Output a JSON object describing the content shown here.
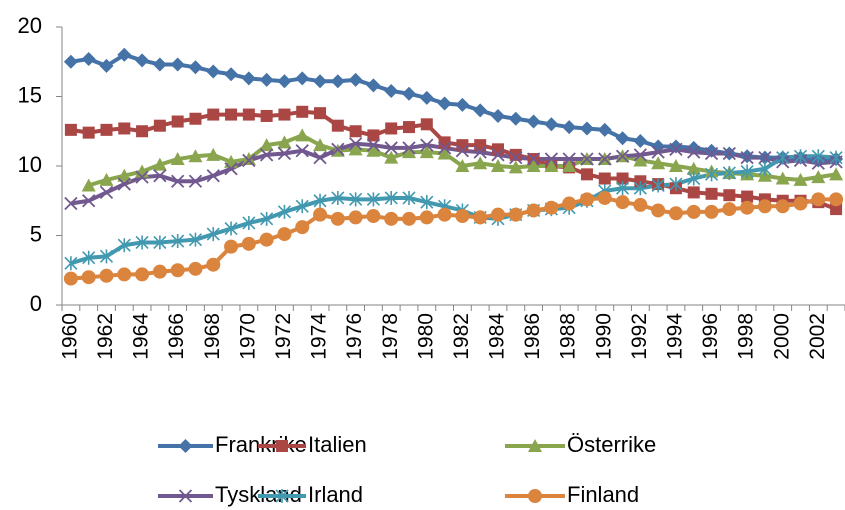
{
  "chart_data": {
    "type": "line",
    "categories": [
      "1960",
      null,
      "1962",
      null,
      "1964",
      null,
      "1966",
      null,
      "1968",
      null,
      "1970",
      null,
      "1972",
      null,
      "1974",
      null,
      "1976",
      null,
      "1978",
      null,
      "1980",
      null,
      "1982",
      null,
      "1984",
      null,
      "1986",
      null,
      "1988",
      null,
      "1990",
      null,
      "1992",
      null,
      "1994",
      null,
      "1996",
      null,
      "1998",
      null,
      "2000",
      null,
      "2002",
      null
    ],
    "series": [
      {
        "name": "Frankrike",
        "color": "#4572a7",
        "marker": "diamond",
        "values": [
          17.5,
          17.7,
          17.2,
          18.0,
          17.6,
          17.3,
          17.3,
          17.1,
          16.8,
          16.6,
          16.3,
          16.2,
          16.1,
          16.3,
          16.1,
          16.1,
          16.2,
          15.8,
          15.4,
          15.2,
          14.9,
          14.5,
          14.4,
          14.0,
          13.6,
          13.4,
          13.2,
          13.0,
          12.8,
          12.7,
          12.6,
          12.0,
          11.8,
          11.4,
          11.4,
          11.3,
          11.1,
          10.9,
          10.7,
          10.6,
          10.6,
          10.6,
          10.4,
          10.5
        ]
      },
      {
        "name": "Italien",
        "color": "#aa4643",
        "marker": "square",
        "values": [
          12.6,
          12.4,
          12.6,
          12.7,
          12.5,
          12.9,
          13.2,
          13.4,
          13.7,
          13.7,
          13.7,
          13.6,
          13.7,
          13.9,
          13.8,
          12.9,
          12.5,
          12.2,
          12.7,
          12.8,
          13.0,
          11.7,
          11.5,
          11.5,
          11.2,
          10.8,
          10.5,
          10.0,
          9.9,
          9.4,
          9.1,
          9.1,
          8.9,
          8.7,
          8.4,
          8.1,
          8.0,
          7.9,
          7.8,
          7.6,
          7.5,
          7.5,
          7.4,
          6.9
        ]
      },
      {
        "name": "Österrike",
        "color": "#89a54e",
        "marker": "triangle",
        "values": [
          null,
          8.6,
          9.0,
          9.3,
          9.6,
          10.1,
          10.5,
          10.7,
          10.8,
          10.3,
          10.5,
          11.5,
          11.7,
          12.2,
          11.5,
          11.1,
          11.2,
          11.1,
          10.6,
          11.0,
          11.0,
          10.9,
          10.0,
          10.2,
          10.0,
          9.9,
          10.0,
          10.0,
          10.0,
          10.5,
          10.5,
          10.7,
          10.4,
          10.2,
          10.0,
          9.8,
          9.6,
          9.5,
          9.4,
          9.3,
          9.1,
          9.0,
          9.2,
          9.4
        ]
      },
      {
        "name": "Tyskland",
        "color": "#71588f",
        "marker": "x",
        "values": [
          7.3,
          7.5,
          8.1,
          8.7,
          9.2,
          9.3,
          8.9,
          8.9,
          9.3,
          9.8,
          10.4,
          10.8,
          10.9,
          11.1,
          10.6,
          11.2,
          11.6,
          11.5,
          11.3,
          11.3,
          11.5,
          11.3,
          11.1,
          11.0,
          10.8,
          10.6,
          10.5,
          10.5,
          10.5,
          10.5,
          10.5,
          10.7,
          10.8,
          11.0,
          11.2,
          11.0,
          10.9,
          10.9,
          10.6,
          10.6,
          10.3,
          10.4,
          10.2,
          10.3
        ]
      },
      {
        "name": "Irland",
        "color": "#4198af",
        "marker": "asterisk",
        "values": [
          3.0,
          3.4,
          3.5,
          4.3,
          4.5,
          4.5,
          4.6,
          4.7,
          5.1,
          5.5,
          5.9,
          6.2,
          6.7,
          7.1,
          7.5,
          7.7,
          7.6,
          7.6,
          7.7,
          7.7,
          7.4,
          7.1,
          6.8,
          6.3,
          6.2,
          6.5,
          6.8,
          6.9,
          7.0,
          7.5,
          8.2,
          8.4,
          8.4,
          8.6,
          8.7,
          9.1,
          9.4,
          9.5,
          9.6,
          9.8,
          10.6,
          10.7,
          10.7,
          10.6
        ]
      },
      {
        "name": "Finland",
        "color": "#db843d",
        "marker": "circle",
        "values": [
          1.9,
          2.0,
          2.1,
          2.2,
          2.2,
          2.4,
          2.5,
          2.6,
          2.9,
          4.2,
          4.4,
          4.7,
          5.1,
          5.6,
          6.5,
          6.2,
          6.3,
          6.4,
          6.2,
          6.2,
          6.3,
          6.5,
          6.4,
          6.3,
          6.5,
          6.5,
          6.8,
          7.0,
          7.3,
          7.6,
          7.7,
          7.4,
          7.2,
          6.8,
          6.6,
          6.7,
          6.7,
          6.9,
          7.0,
          7.1,
          7.1,
          7.3,
          7.6,
          7.6
        ]
      }
    ],
    "ylim": [
      0,
      20
    ],
    "yticks": [
      0,
      5,
      10,
      15,
      20
    ],
    "grid": false,
    "legend": "bottom"
  }
}
